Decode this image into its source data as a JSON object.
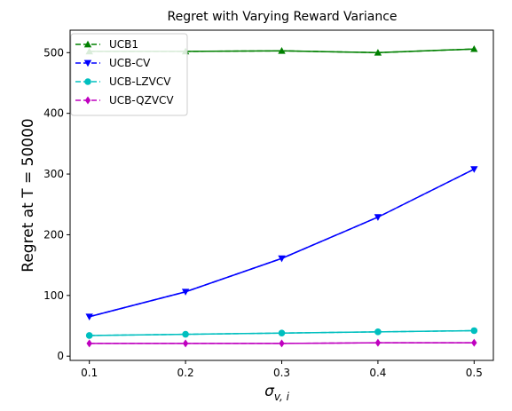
{
  "chart_data": {
    "type": "line",
    "title": "Regret with Varying Reward Variance",
    "xlabel": "σ",
    "xlabel_sub": "v, i",
    "ylabel": "Regret at T = 50000",
    "x": [
      0.1,
      0.2,
      0.3,
      0.4,
      0.5
    ],
    "x_ticks": [
      "0.1",
      "0.2",
      "0.3",
      "0.4",
      "0.5"
    ],
    "y_ticks": [
      "0",
      "100",
      "200",
      "300",
      "400",
      "500"
    ],
    "xlim": [
      0.08,
      0.52
    ],
    "ylim": [
      -7,
      537
    ],
    "grid": false,
    "legend_position": "top-left",
    "series": [
      {
        "name": "UCB1",
        "color": "#008000",
        "marker": "triangle-up",
        "values": [
          502,
          502,
          503,
          500,
          506
        ]
      },
      {
        "name": "UCB-CV",
        "color": "#0000ff",
        "marker": "triangle-down",
        "values": [
          65,
          106,
          161,
          229,
          308
        ]
      },
      {
        "name": "UCB-LZVCV",
        "color": "#00bfbf",
        "marker": "circle",
        "values": [
          34,
          36,
          38,
          40,
          42
        ]
      },
      {
        "name": "UCB-QZVCV",
        "color": "#bf00bf",
        "marker": "diamond",
        "values": [
          21,
          21,
          21,
          22,
          22
        ]
      }
    ]
  }
}
